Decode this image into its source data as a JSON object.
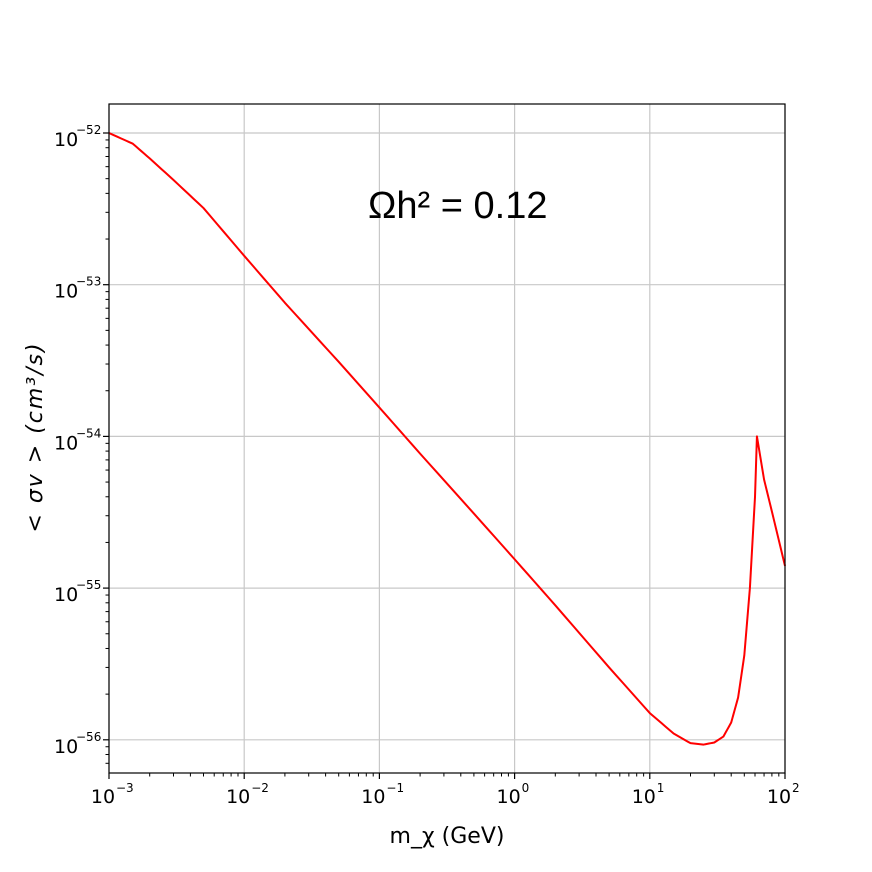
{
  "chart_data": {
    "type": "line",
    "xscale": "log",
    "yscale": "log",
    "xlim": [
      0.001,
      100
    ],
    "ylim": [
      5.5e-57,
      1.2e-52
    ],
    "grid": true,
    "xlabel": "m_χ (GeV)",
    "ylabel": "< σv > (cm³/s)",
    "annotation": "Ωh² = 0.12",
    "x_ticks": [
      {
        "base": "10",
        "exp": "−3",
        "value": 0.001
      },
      {
        "base": "10",
        "exp": "−2",
        "value": 0.01
      },
      {
        "base": "10",
        "exp": "−1",
        "value": 0.1
      },
      {
        "base": "10",
        "exp": "0",
        "value": 1
      },
      {
        "base": "10",
        "exp": "1",
        "value": 10
      },
      {
        "base": "10",
        "exp": "2",
        "value": 100
      }
    ],
    "y_ticks": [
      {
        "base": "10",
        "exp": "−52",
        "value": 1e-52
      },
      {
        "base": "10",
        "exp": "−53",
        "value": 1e-53
      },
      {
        "base": "10",
        "exp": "−54",
        "value": 1e-54
      },
      {
        "base": "10",
        "exp": "−55",
        "value": 1e-55
      },
      {
        "base": "10",
        "exp": "−56",
        "value": 1e-56
      }
    ],
    "line_color": "#ff0000",
    "series": [
      {
        "x": [
          0.001,
          0.0015,
          0.002,
          0.003,
          0.005,
          0.01,
          0.02,
          0.05,
          0.1,
          0.2,
          0.5,
          1,
          2,
          5,
          10,
          15,
          20,
          25,
          30,
          35,
          40,
          45,
          50,
          55,
          60,
          62,
          70,
          80,
          100
        ],
        "y": [
          1e-52,
          8.5e-53,
          6.8e-53,
          4.9e-53,
          3.2e-53,
          1.55e-53,
          7.6e-54,
          3.1e-54,
          1.55e-54,
          7.7e-55,
          3.1e-55,
          1.55e-55,
          7.7e-56,
          3e-56,
          1.5e-56,
          1.1e-56,
          9.5e-57,
          9.3e-57,
          9.6e-57,
          1.05e-56,
          1.3e-56,
          1.9e-56,
          3.6e-56,
          1e-55,
          4e-55,
          1e-54,
          5.2e-55,
          3.2e-55,
          1.4e-55
        ]
      }
    ]
  }
}
